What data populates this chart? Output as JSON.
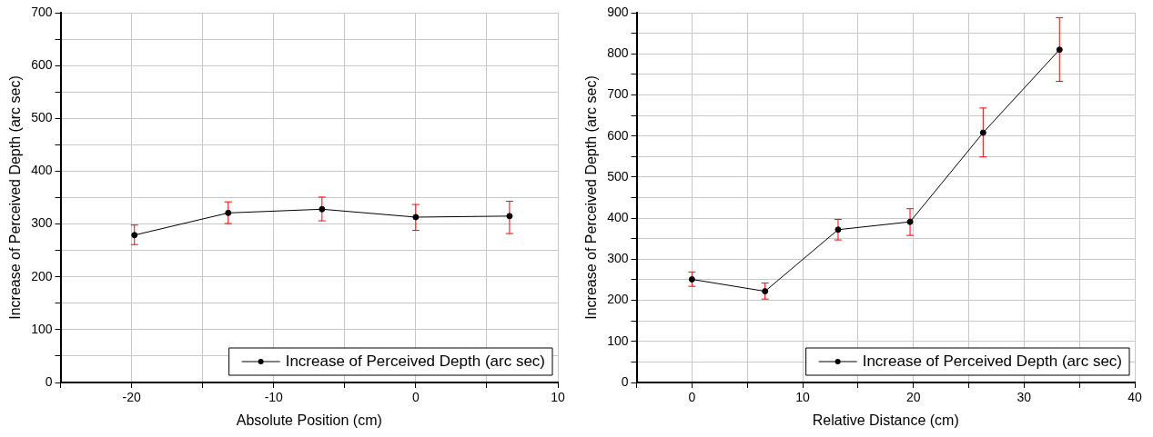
{
  "chart_data": [
    {
      "type": "line",
      "xlabel": "Absolute Position (cm)",
      "ylabel": "Increase of Perceived Depth (arc sec)",
      "x": [
        -19.8,
        -13.2,
        -6.6,
        0,
        6.6
      ],
      "series": [
        {
          "name": "Increase of Perceived Depth (arc sec)",
          "color": "#000000",
          "values": [
            279,
            321,
            328,
            313,
            315
          ],
          "errors": [
            [
              261,
              298
            ],
            [
              301,
              342
            ],
            [
              306,
              351
            ],
            [
              288,
              337
            ],
            [
              282,
              343
            ]
          ]
        }
      ],
      "xlim": [
        -25,
        10
      ],
      "xticks": [
        {
          "value": -25,
          "label": null
        },
        -20,
        {
          "value": -15,
          "label": null
        },
        -10,
        {
          "value": -5,
          "label": null
        },
        0,
        {
          "value": 5,
          "label": null
        },
        10
      ],
      "ylim": [
        0,
        700
      ],
      "yticks": [
        0,
        {
          "value": 50,
          "label": null
        },
        100,
        {
          "value": 150,
          "label": null
        },
        200,
        {
          "value": 250,
          "label": null
        },
        300,
        {
          "value": 350,
          "label": null
        },
        400,
        {
          "value": 450,
          "label": null
        },
        500,
        {
          "value": 550,
          "label": null
        },
        600,
        {
          "value": 650,
          "label": null
        },
        700
      ],
      "grid": true,
      "legend": "bottom right",
      "marker": "circle",
      "line_style": "solid"
    },
    {
      "type": "line",
      "xlabel": "Relative Distance (cm)",
      "ylabel": "Increase of Perceived Depth (arc sec)",
      "x": [
        0,
        6.6,
        13.2,
        19.7,
        26.3,
        33.2
      ],
      "series": [
        {
          "name": "Increase of Perceived Depth (arc sec)",
          "color": "#000000",
          "values": [
            251,
            222,
            372,
            391,
            608,
            810
          ],
          "errors": [
            [
              234,
              269
            ],
            [
              203,
              242
            ],
            [
              347,
              397
            ],
            [
              358,
              423
            ],
            [
              549,
              668
            ],
            [
              733,
              888
            ]
          ]
        }
      ],
      "xlim": [
        -5,
        40
      ],
      "xticks": [
        {
          "value": -5,
          "label": null
        },
        0,
        {
          "value": 5,
          "label": null
        },
        10,
        {
          "value": 15,
          "label": null
        },
        20,
        {
          "value": 25,
          "label": null
        },
        30,
        {
          "value": 35,
          "label": null
        },
        40
      ],
      "ylim": [
        0,
        900
      ],
      "yticks": [
        0,
        {
          "value": 50,
          "label": null
        },
        100,
        {
          "value": 150,
          "label": null
        },
        200,
        {
          "value": 250,
          "label": null
        },
        300,
        {
          "value": 350,
          "label": null
        },
        400,
        {
          "value": 450,
          "label": null
        },
        500,
        {
          "value": 550,
          "label": null
        },
        600,
        {
          "value": 650,
          "label": null
        },
        700,
        {
          "value": 750,
          "label": null
        },
        800,
        {
          "value": 850,
          "label": null
        },
        900
      ],
      "grid": true,
      "legend": "bottom right",
      "marker": "circle",
      "line_style": "solid"
    }
  ]
}
